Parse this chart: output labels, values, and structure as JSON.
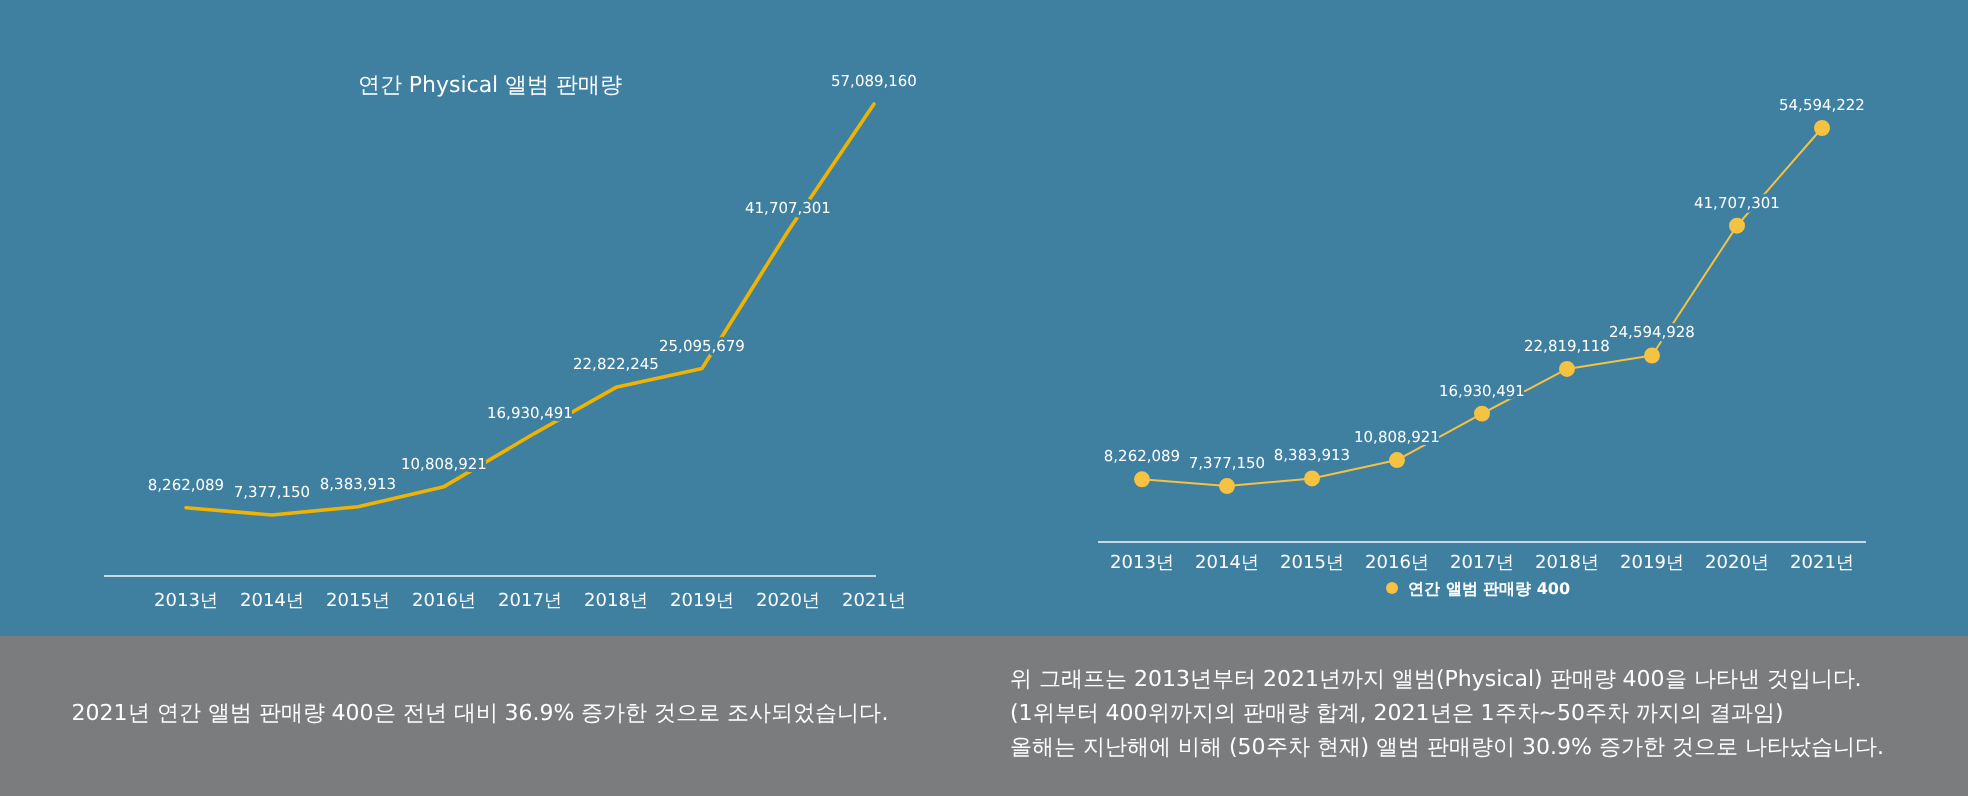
{
  "chart_data": [
    {
      "type": "line",
      "title": "연간 Physical 앨범 판매량",
      "categories": [
        "2013년",
        "2014년",
        "2015년",
        "2016년",
        "2017년",
        "2018년",
        "2019년",
        "2020년",
        "2021년"
      ],
      "series": [
        {
          "color": "#f0b400",
          "values": [
            8262089,
            7377150,
            8383913,
            10808921,
            16930491,
            22822245,
            25095679,
            41707301,
            57089160
          ],
          "value_labels": [
            "8,262,089",
            "7,377,150",
            "8,383,913",
            "10,808,921",
            "16,930,491",
            "22,822,245",
            "25,095,679",
            "41,707,301",
            "57,089,160"
          ]
        }
      ],
      "marker": "none",
      "line_style": "solid",
      "annotations": [
        "2021년 연간 앨범 판매량 400은 전년 대비 36.9% 증가한 것으로 조사되었습니다."
      ]
    },
    {
      "type": "line",
      "categories": [
        "2013년",
        "2014년",
        "2015년",
        "2016년",
        "2017년",
        "2018년",
        "2019년",
        "2020년",
        "2021년"
      ],
      "series": [
        {
          "name": "연간 앨범 판매량 400",
          "color": "#f5c242",
          "values": [
            8262089,
            7377150,
            8383913,
            10808921,
            16930491,
            22819118,
            24594928,
            41707301,
            54594222
          ],
          "value_labels": [
            "8,262,089",
            "7,377,150",
            "8,383,913",
            "10,808,921",
            "16,930,491",
            "22,819,118",
            "24,594,928",
            "41,707,301",
            "54,594,222"
          ]
        }
      ],
      "marker": "circle",
      "line_style": "solid",
      "legend": "bottom",
      "annotations": [
        "위 그래프는 2013년부터 2021년까지 앨범(Physical) 판매량 400을 나타낸 것입니다.",
        "(1위부터 400위까지의 판매량 합계, 2021년은 1주차~50주차 까지의 결과임)",
        "올해는 지난해에 비해 (50주차 현재) 앨범 판매량이 30.9% 증가한 것으로 나타났습니다."
      ]
    }
  ]
}
